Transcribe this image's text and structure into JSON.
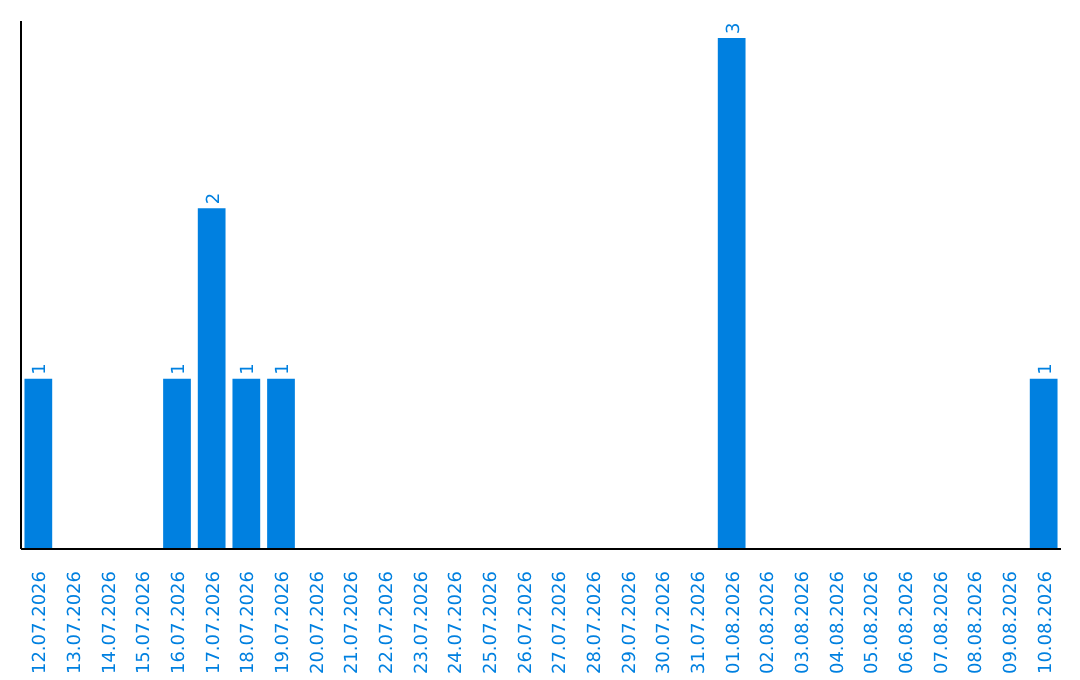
{
  "chart_data": {
    "type": "bar",
    "categories": [
      "12.07.2026",
      "13.07.2026",
      "14.07.2026",
      "15.07.2026",
      "16.07.2026",
      "17.07.2026",
      "18.07.2026",
      "19.07.2026",
      "20.07.2026",
      "21.07.2026",
      "22.07.2026",
      "23.07.2026",
      "24.07.2026",
      "25.07.2026",
      "26.07.2026",
      "27.07.2026",
      "28.07.2026",
      "29.07.2026",
      "30.07.2026",
      "31.07.2026",
      "01.08.2026",
      "02.08.2026",
      "03.08.2026",
      "04.08.2026",
      "05.08.2026",
      "06.08.2026",
      "07.08.2026",
      "08.08.2026",
      "09.08.2026",
      "10.08.2026"
    ],
    "values": [
      1,
      0,
      0,
      0,
      1,
      2,
      1,
      1,
      0,
      0,
      0,
      0,
      0,
      0,
      0,
      0,
      0,
      0,
      0,
      0,
      3,
      0,
      0,
      0,
      0,
      0,
      0,
      0,
      0,
      1
    ],
    "value_labels": [
      "1",
      null,
      null,
      null,
      "1",
      "2",
      "1",
      "1",
      null,
      null,
      null,
      null,
      null,
      null,
      null,
      null,
      null,
      null,
      null,
      null,
      "3",
      null,
      null,
      null,
      null,
      null,
      null,
      null,
      null,
      "1"
    ],
    "color": "#0080e0",
    "ylim": [
      0,
      3.1
    ],
    "tick_labels": "x"
  }
}
